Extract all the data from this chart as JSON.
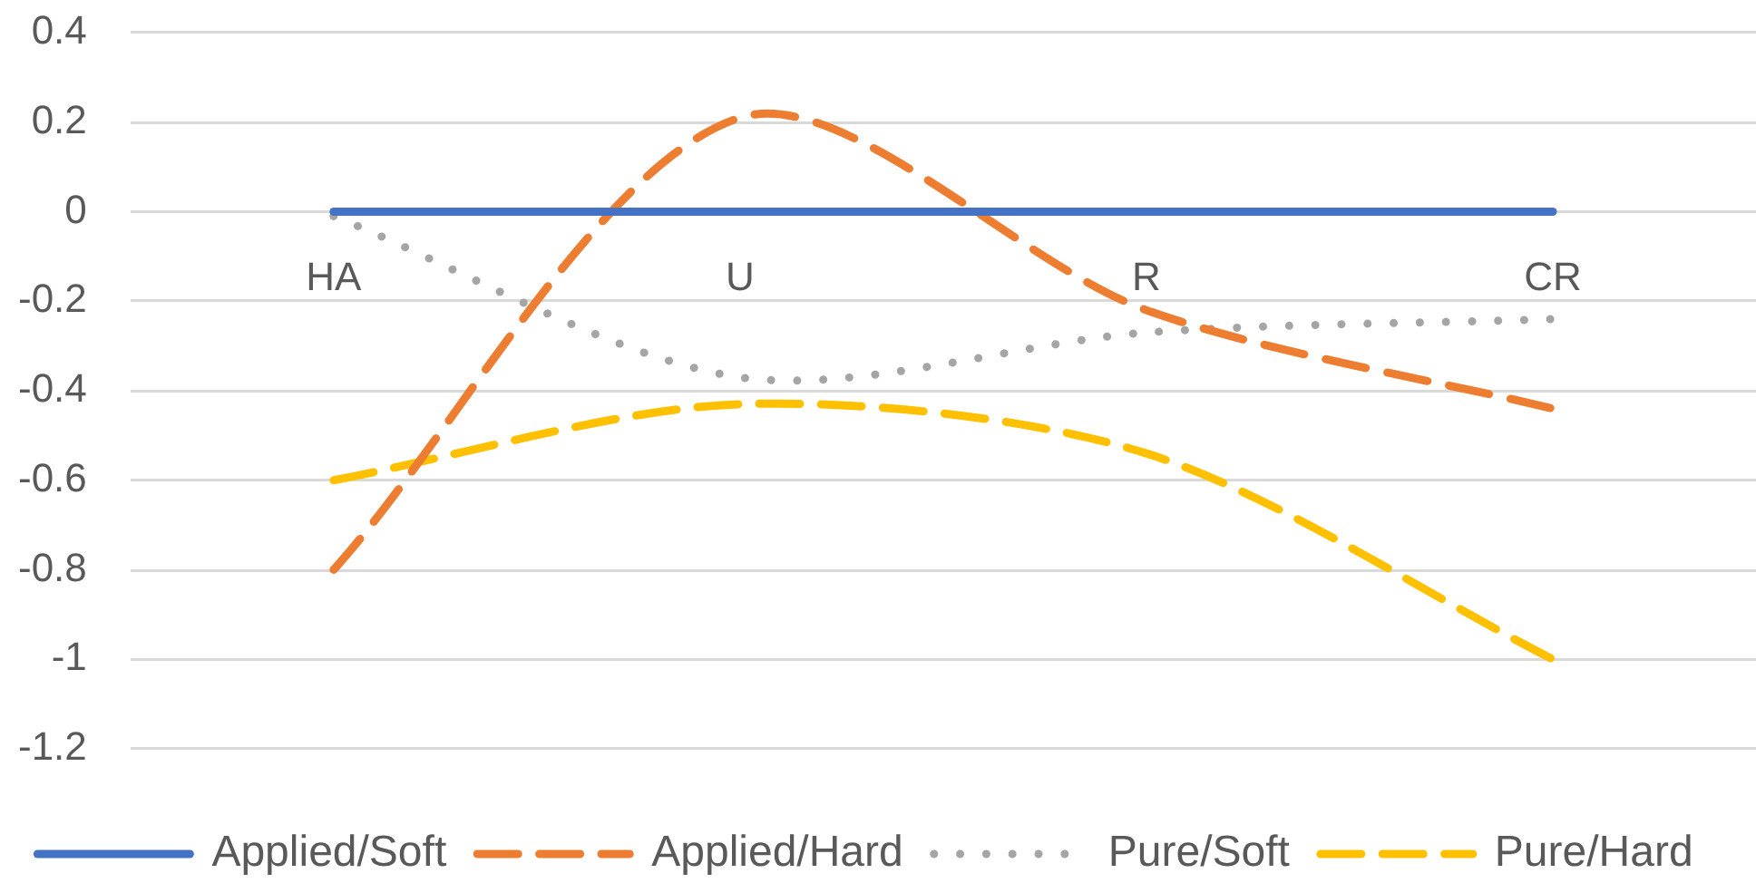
{
  "chart_data": {
    "type": "line",
    "categories": [
      "HA",
      "U",
      "R",
      "CR"
    ],
    "series": [
      {
        "name": "Applied/Soft",
        "color": "#4472c4",
        "values": [
          0,
          0,
          0,
          0
        ],
        "line_style": "solid"
      },
      {
        "name": "Applied/Hard",
        "color": "#ed7d31",
        "values": [
          -0.8,
          0.21,
          -0.22,
          -0.44
        ],
        "line_style": "dashed"
      },
      {
        "name": "Pure/Soft",
        "color": "#a5a5a5",
        "values": [
          -0.01,
          -0.37,
          -0.27,
          -0.24
        ],
        "line_style": "dotted"
      },
      {
        "name": "Pure/Hard",
        "color": "#ffc000",
        "values": [
          -0.6,
          -0.43,
          -0.54,
          -1.0
        ],
        "line_style": "dashed"
      }
    ],
    "ylim": [
      -1.2,
      0.4
    ],
    "yticks": [
      -1.2,
      -1,
      -0.8,
      -0.6,
      -0.4,
      -0.2,
      0,
      0.2,
      0.4
    ],
    "grid": "y",
    "legend": "bottom",
    "marker": "none"
  }
}
